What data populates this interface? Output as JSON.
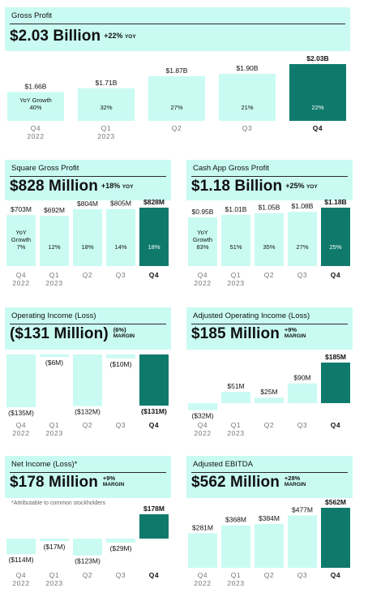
{
  "colors": {
    "bar": "#c9fbf3",
    "highlight": "#0f7a6c",
    "header": "#c9fbf3"
  },
  "panels": [
    {
      "id": "gross-profit",
      "title": "Gross Profit",
      "headline": "$2.03 Billion",
      "change": "+22%",
      "change_suffix": "YOY",
      "margin": "",
      "note": "",
      "chart_data": {
        "type": "bar",
        "categories": [
          "Q4\n2022",
          "Q1\n2023",
          "Q2",
          "Q3",
          "Q4"
        ],
        "values": [
          1.66,
          1.71,
          1.87,
          1.9,
          2.03
        ],
        "value_labels": [
          "$1.66B",
          "$1.71B",
          "$1.87B",
          "$1.90B",
          "$2.03B"
        ],
        "inner_labels": [
          "YoY Growth\n40%",
          "32%",
          "27%",
          "21%",
          "22%"
        ],
        "highlight_index": 4
      }
    },
    {
      "id": "square-gross-profit",
      "title": "Square Gross Profit",
      "headline": "$828 Million",
      "change": "+18%",
      "change_suffix": "YOY",
      "margin": "",
      "note": "",
      "chart_data": {
        "type": "bar",
        "categories": [
          "Q4\n2022",
          "Q1\n2023",
          "Q2",
          "Q3",
          "Q4"
        ],
        "values": [
          703,
          692,
          804,
          805,
          828
        ],
        "value_labels": [
          "$703M",
          "$692M",
          "$804M",
          "$805M",
          "$828M"
        ],
        "inner_labels": [
          "YoY\nGrowth\n7%",
          "12%",
          "18%",
          "14%",
          "18%"
        ],
        "highlight_index": 4
      }
    },
    {
      "id": "cash-app-gross-profit",
      "title": "Cash App Gross Profit",
      "headline": "$1.18 Billion",
      "change": "+25%",
      "change_suffix": "YOY",
      "margin": "",
      "note": "",
      "chart_data": {
        "type": "bar",
        "categories": [
          "Q4\n2022",
          "Q1\n2023",
          "Q2",
          "Q3",
          "Q4"
        ],
        "values": [
          0.95,
          1.01,
          1.05,
          1.08,
          1.18
        ],
        "value_labels": [
          "$0.95B",
          "$1.01B",
          "$1.05B",
          "$1.08B",
          "$1.18B"
        ],
        "inner_labels": [
          "YoY\nGrowth\n83%",
          "51%",
          "35%",
          "27%",
          "25%"
        ],
        "highlight_index": 4
      }
    },
    {
      "id": "operating-income",
      "title": "Operating Income (Loss)",
      "headline": "($131 Million)",
      "change": "",
      "change_suffix": "",
      "margin": "(6%)\nMARGIN",
      "note": "",
      "chart_data": {
        "type": "bar",
        "categories": [
          "Q4\n2022",
          "Q1\n2023",
          "Q2",
          "Q3",
          "Q4"
        ],
        "values": [
          -135,
          -6,
          -132,
          -10,
          -131
        ],
        "value_labels": [
          "($135M)",
          "($6M)",
          "($132M)",
          "($10M)",
          "($131M)"
        ],
        "inner_labels": [
          "",
          "",
          "",
          "",
          ""
        ],
        "highlight_index": 4
      }
    },
    {
      "id": "adjusted-operating-income",
      "title": "Adjusted Operating Income (Loss)",
      "headline": "$185 Million",
      "change": "",
      "change_suffix": "",
      "margin": "+9%\nMARGIN",
      "note": "",
      "chart_data": {
        "type": "bar",
        "categories": [
          "Q4\n2022",
          "Q1\n2023",
          "Q2",
          "Q3",
          "Q4"
        ],
        "values": [
          -32,
          51,
          25,
          90,
          185
        ],
        "value_labels": [
          "($32M)",
          "$51M",
          "$25M",
          "$90M",
          "$185M"
        ],
        "inner_labels": [
          "",
          "",
          "",
          "",
          ""
        ],
        "highlight_index": 4
      }
    },
    {
      "id": "net-income",
      "title": "Net Income (Loss)*",
      "headline": "$178 Million",
      "change": "",
      "change_suffix": "",
      "margin": "+9%\nMARGIN",
      "note": "*Attributable to common stockholders",
      "chart_data": {
        "type": "bar",
        "categories": [
          "Q4\n2022",
          "Q1\n2023",
          "Q2",
          "Q3",
          "Q4"
        ],
        "values": [
          -114,
          -17,
          -123,
          -29,
          178
        ],
        "value_labels": [
          "($114M)",
          "($17M)",
          "($123M)",
          "($29M)",
          "$178M"
        ],
        "inner_labels": [
          "",
          "",
          "",
          "",
          ""
        ],
        "highlight_index": 4
      }
    },
    {
      "id": "adjusted-ebitda",
      "title": "Adjusted EBITDA",
      "headline": "$562 Million",
      "change": "",
      "change_suffix": "",
      "margin": "+28%\nMARGIN",
      "note": "",
      "chart_data": {
        "type": "bar",
        "categories": [
          "Q4\n2022",
          "Q1\n2023",
          "Q2",
          "Q3",
          "Q4"
        ],
        "values": [
          281,
          368,
          384,
          477,
          562
        ],
        "value_labels": [
          "$281M",
          "$368M",
          "$384M",
          "$477M",
          "$562M"
        ],
        "inner_labels": [
          "",
          "",
          "",
          "",
          ""
        ],
        "highlight_index": 4
      }
    }
  ]
}
